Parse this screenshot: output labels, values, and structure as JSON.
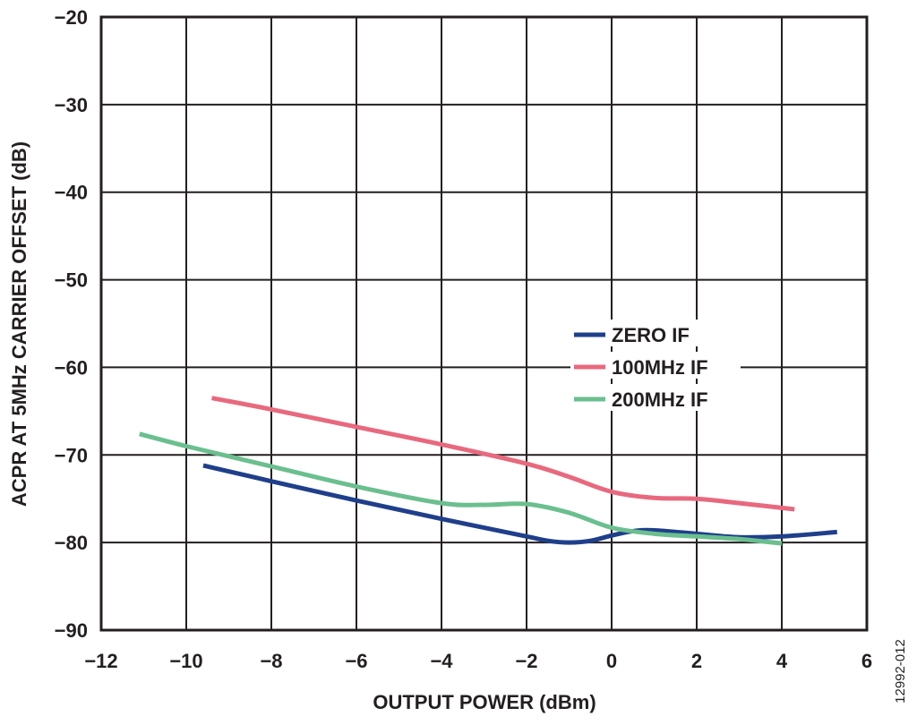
{
  "chart_data": {
    "type": "line",
    "xlabel": "OUTPUT POWER (dBm)",
    "ylabel": "ACPR AT 5MHz CARRIER OFFSET (dB)",
    "xlim": [
      -12,
      6
    ],
    "ylim": [
      -90,
      -20
    ],
    "xticks": [
      -12,
      -10,
      -8,
      -6,
      -4,
      -2,
      0,
      2,
      4,
      6
    ],
    "yticks": [
      -20,
      -30,
      -40,
      -50,
      -60,
      -70,
      -80,
      -90
    ],
    "xtick_labels": [
      "−12",
      "−10",
      "−8",
      "−6",
      "−4",
      "−2",
      "0",
      "2",
      "4",
      "6"
    ],
    "ytick_labels": [
      "−20",
      "−30",
      "−40",
      "−50",
      "−60",
      "−70",
      "−80",
      "−90"
    ],
    "grid": true,
    "legend_position": "center-right",
    "series": [
      {
        "name": "ZERO IF",
        "color": "#1f3f8a",
        "x": [
          -9.6,
          -8,
          -6,
          -4,
          -2,
          -1.5,
          -1,
          -0.5,
          0,
          0.5,
          1,
          2,
          3,
          4,
          5.3
        ],
        "y": [
          -71.2,
          -73.0,
          -75.2,
          -77.3,
          -79.3,
          -79.8,
          -80.0,
          -79.8,
          -79.2,
          -78.7,
          -78.6,
          -79.0,
          -79.4,
          -79.3,
          -78.8
        ]
      },
      {
        "name": "100MHz IF",
        "color": "#e8697e",
        "x": [
          -9.4,
          -8,
          -6,
          -4,
          -2,
          -1,
          0,
          1,
          2,
          3,
          4.3
        ],
        "y": [
          -63.5,
          -64.8,
          -66.8,
          -68.8,
          -71.0,
          -72.5,
          -74.2,
          -74.9,
          -75.0,
          -75.5,
          -76.2
        ]
      },
      {
        "name": "200MHz IF",
        "color": "#6bbf8f",
        "x": [
          -11.1,
          -10,
          -8,
          -6,
          -4,
          -3,
          -2,
          -1,
          0,
          1,
          2,
          3,
          4
        ],
        "y": [
          -67.6,
          -69.0,
          -71.3,
          -73.6,
          -75.5,
          -75.7,
          -75.6,
          -76.6,
          -78.3,
          -79.0,
          -79.3,
          -79.6,
          -80.1
        ]
      }
    ],
    "annotations": [
      "12992-012"
    ]
  }
}
